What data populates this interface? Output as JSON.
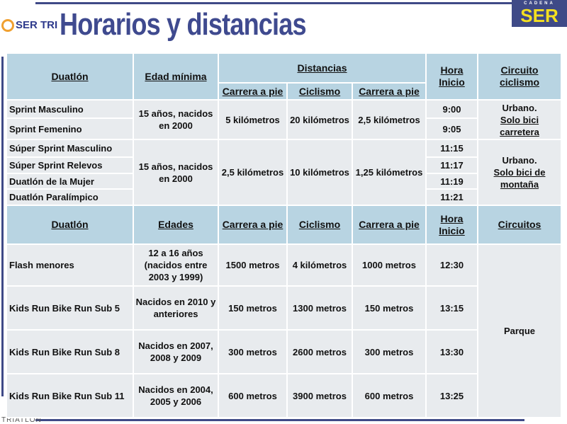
{
  "header": {
    "title": "Horarios y distancias",
    "logo_left": "SER TRI",
    "logo_right_top": "CADENA",
    "logo_right": "SER",
    "footer_logo": "TRIATLON"
  },
  "t1": {
    "h": {
      "duatlon": "Duatlón",
      "edad": "Edad mínima",
      "distancias": "Distancias",
      "carrera1": "Carrera a pie",
      "ciclismo": "Ciclismo",
      "carrera2": "Carrera a pie",
      "hora": "Hora Inicio",
      "circuito": "Circuito ciclismo"
    },
    "g1": {
      "edad": "15 años, nacidos en 2000",
      "carrera1": "5 kilómetros",
      "ciclismo": "20 kilómetros",
      "carrera2": "2,5 kilómetros",
      "circuito1": "Urbano.",
      "circuito2": "Solo bici carretera",
      "rows": [
        {
          "name": "Sprint Masculino",
          "hora": "9:00"
        },
        {
          "name": "Sprint Femenino",
          "hora": "9:05"
        }
      ]
    },
    "g2": {
      "edad": "15 años, nacidos en 2000",
      "carrera1": "2,5 kilómetros",
      "ciclismo": "10 kilómetros",
      "carrera2": "1,25 kilómetros",
      "circuito1": "Urbano.",
      "circuito2": "Solo bici de montaña",
      "rows": [
        {
          "name": "Súper Sprint Masculino",
          "hora": "11:15"
        },
        {
          "name": "Súper Sprint Relevos",
          "hora": "11:17"
        },
        {
          "name": "Duatlón de la Mujer",
          "hora": "11:19"
        },
        {
          "name": "Duatlón Paralímpico",
          "hora": "11:21"
        }
      ]
    }
  },
  "t2": {
    "h": {
      "duatlon": "Duatlón",
      "edades": "Edades",
      "carrera1": "Carrera a pie",
      "ciclismo": "Ciclismo",
      "carrera2": "Carrera a pie",
      "hora": "Hora Inicio",
      "circuitos": "Circuitos"
    },
    "circuito": "Parque",
    "rows": [
      {
        "name": "Flash menores",
        "edades": "12 a 16 años (nacidos entre 2003 y 1999)",
        "carrera1": "1500 metros",
        "ciclismo": "4 kilómetros",
        "carrera2": "1000 metros",
        "hora": "12:30"
      },
      {
        "name": "Kids Run Bike Run Sub 5",
        "edades": "Nacidos en 2010 y anteriores",
        "carrera1": "150 metros",
        "ciclismo": "1300 metros",
        "carrera2": "150 metros",
        "hora": "13:15"
      },
      {
        "name": "Kids Run Bike Run Sub 8",
        "edades": "Nacidos en 2007, 2008 y 2009",
        "carrera1": "300 metros",
        "ciclismo": "2600 metros",
        "carrera2": "300 metros",
        "hora": "13:30"
      },
      {
        "name": "Kids Run Bike Run Sub 11",
        "edades": "Nacidos en 2004, 2005 y 2006",
        "carrera1": "600 metros",
        "ciclismo": "3900 metros",
        "carrera2": "600 metros",
        "hora": "13:25"
      }
    ]
  }
}
